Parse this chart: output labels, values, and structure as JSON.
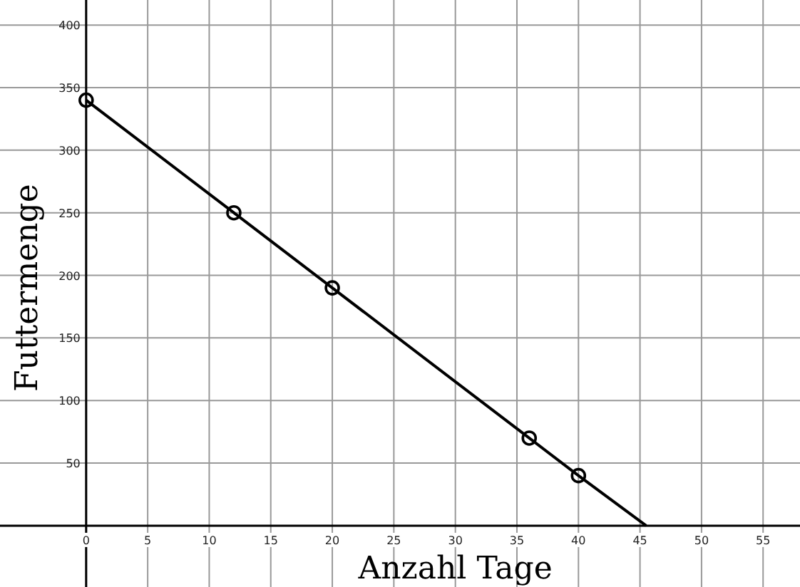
{
  "chart_data": {
    "type": "line",
    "xlabel": "Anzahl Tage",
    "ylabel": "Futtermenge",
    "xlim": [
      -7,
      58
    ],
    "ylim": [
      -49,
      420
    ],
    "xticks": [
      0,
      5,
      10,
      15,
      20,
      25,
      30,
      35,
      40,
      45,
      50,
      55
    ],
    "yticks": [
      50,
      100,
      150,
      200,
      250,
      300,
      350,
      400
    ],
    "grid": true,
    "series": [
      {
        "color": "#000000",
        "marker": "none",
        "x": [
          0,
          12,
          20,
          36,
          40,
          45.5
        ],
        "values": [
          340,
          250,
          190,
          70,
          40,
          0
        ]
      },
      {
        "type": "scatter",
        "color": "#000000",
        "marker": "circle",
        "x": [
          0,
          12,
          20,
          36,
          40
        ],
        "values": [
          340,
          250,
          190,
          70,
          40
        ]
      }
    ]
  }
}
